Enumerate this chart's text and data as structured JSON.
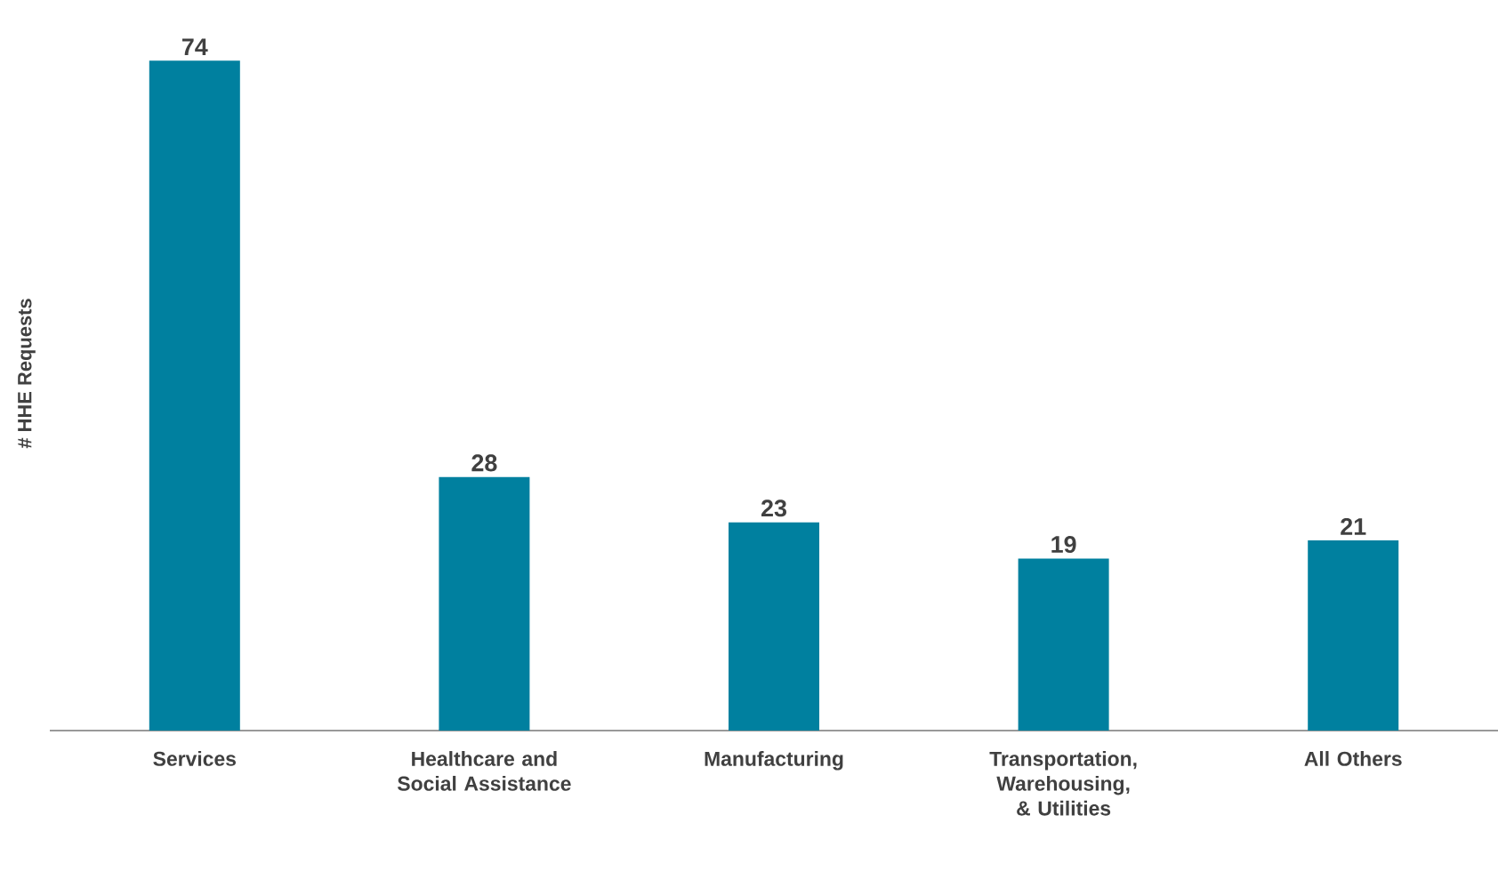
{
  "chart_data": {
    "type": "bar",
    "ylabel": "# HHE Requests",
    "categories": [
      "Services",
      "Healthcare and Social Assistance",
      "Manufacturing",
      "Transportation, Warehousing, & Utilities",
      "All Others"
    ],
    "values": [
      74,
      28,
      23,
      19,
      21
    ],
    "color": "#00809f",
    "data_labels": true,
    "tick_labels": "x"
  }
}
